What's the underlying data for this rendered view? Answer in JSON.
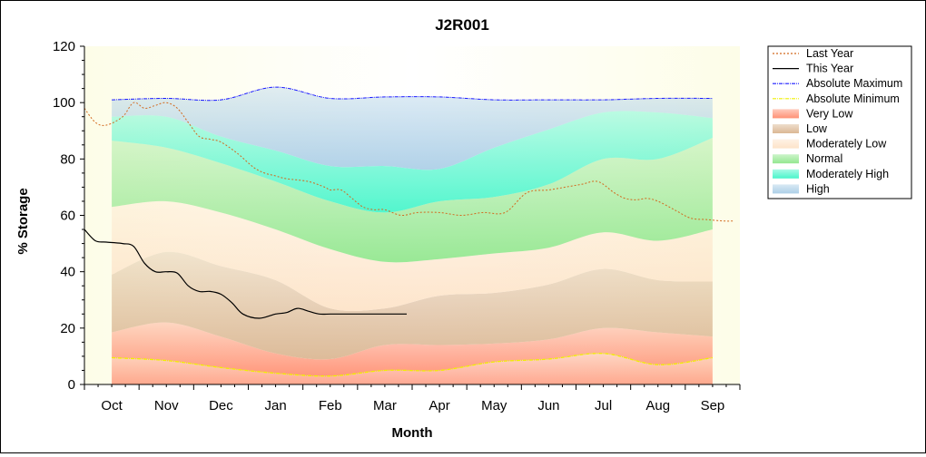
{
  "chart_data": {
    "type": "area",
    "title": "J2R001",
    "xlabel": "Month",
    "ylabel": "% Storage",
    "ylim": [
      0,
      120
    ],
    "yticks": [
      0,
      20,
      40,
      60,
      80,
      100,
      120
    ],
    "xlim": [
      -0.5,
      11.5
    ],
    "categories": [
      "Oct",
      "Nov",
      "Dec",
      "Jan",
      "Feb",
      "Mar",
      "Apr",
      "May",
      "Jun",
      "Jul",
      "Aug",
      "Sep"
    ],
    "grid": false,
    "legend_position": "right",
    "band_x": [
      0,
      1,
      2,
      3,
      4,
      5,
      6,
      7,
      8,
      9,
      10,
      11
    ],
    "bands": [
      {
        "name": "Very Low",
        "color": "#ff8c6e",
        "lower": [
          9.5,
          8.5,
          6.0,
          4.0,
          3.0,
          5.0,
          5.0,
          8.0,
          9.0,
          11.0,
          7.0,
          9.5
        ],
        "upper": [
          18.5,
          22.0,
          17.0,
          11.0,
          9.0,
          14.0,
          14.0,
          14.5,
          16.0,
          20.0,
          18.5,
          17.0
        ]
      },
      {
        "name": "Low",
        "color": "#d9b48f",
        "lower": [
          18.5,
          22.0,
          17.0,
          11.0,
          9.0,
          14.0,
          14.0,
          14.5,
          16.0,
          20.0,
          18.5,
          17.0
        ],
        "upper": [
          39.0,
          47.0,
          42.0,
          37.0,
          27.0,
          27.0,
          31.5,
          32.5,
          35.5,
          41.0,
          37.0,
          36.5
        ]
      },
      {
        "name": "Moderately Low",
        "color": "#fde2c6",
        "lower": [
          39.0,
          47.0,
          42.0,
          37.0,
          27.0,
          27.0,
          31.5,
          32.5,
          35.5,
          41.0,
          37.0,
          36.5
        ],
        "upper": [
          63.0,
          65.0,
          61.0,
          55.0,
          48.0,
          43.5,
          44.5,
          46.5,
          48.5,
          54.0,
          51.0,
          55.0
        ]
      },
      {
        "name": "Normal",
        "color": "#8ee68a",
        "lower": [
          63.0,
          65.0,
          61.0,
          55.0,
          48.0,
          43.5,
          44.5,
          46.5,
          48.5,
          54.0,
          51.0,
          55.0
        ],
        "upper": [
          86.5,
          84.0,
          78.5,
          72.0,
          65.0,
          61.0,
          65.0,
          66.5,
          71.0,
          80.0,
          80.0,
          87.5
        ]
      },
      {
        "name": "Moderately High",
        "color": "#40f5c8",
        "lower": [
          86.5,
          84.0,
          78.5,
          72.0,
          65.0,
          61.0,
          65.0,
          66.5,
          71.0,
          80.0,
          80.0,
          87.5
        ],
        "upper": [
          95.0,
          95.0,
          88.0,
          83.0,
          77.5,
          77.5,
          76.5,
          84.0,
          90.5,
          96.5,
          96.5,
          94.5
        ]
      },
      {
        "name": "High",
        "color": "#a9cde6",
        "lower": [
          95.0,
          95.0,
          88.0,
          83.0,
          77.5,
          77.5,
          76.5,
          84.0,
          90.5,
          96.5,
          96.5,
          94.5
        ],
        "upper": [
          101.0,
          101.5,
          101.0,
          105.5,
          101.5,
          102.0,
          102.0,
          101.0,
          101.0,
          101.0,
          101.5,
          101.5
        ]
      }
    ],
    "lines": [
      {
        "name": "Last Year",
        "color": "#d2691e",
        "dash": "2,2",
        "width": 1,
        "x": [
          -0.5,
          -0.3,
          -0.1,
          0.2,
          0.4,
          0.6,
          0.8,
          1.0,
          1.2,
          1.4,
          1.6,
          1.8,
          2.0,
          2.3,
          2.6,
          2.8,
          3.0,
          3.2,
          3.6,
          3.9,
          4.0,
          4.2,
          4.4,
          4.6,
          4.8,
          5.0,
          5.3,
          5.6,
          6.0,
          6.4,
          6.8,
          7.2,
          7.6,
          8.0,
          8.3,
          8.6,
          8.9,
          9.2,
          9.4,
          9.6,
          9.8,
          10.0,
          10.3,
          10.6,
          10.9,
          11.2,
          11.4
        ],
        "y": [
          98,
          93,
          92,
          95,
          100,
          98,
          99,
          100,
          98,
          93,
          88,
          87,
          86,
          82,
          77,
          75,
          74,
          73,
          72,
          70,
          69,
          69,
          66,
          63,
          62,
          62,
          60,
          61,
          61,
          60,
          61,
          61,
          68,
          69,
          70,
          71,
          72,
          68,
          66,
          65.5,
          66,
          65,
          62,
          59,
          58.5,
          58,
          58
        ]
      },
      {
        "name": "This Year",
        "color": "#000000",
        "dash": "",
        "width": 1.2,
        "x": [
          -0.5,
          -0.3,
          -0.1,
          0.2,
          0.4,
          0.6,
          0.8,
          1.0,
          1.2,
          1.4,
          1.6,
          1.8,
          2.0,
          2.2,
          2.4,
          2.7,
          3.0,
          3.2,
          3.4,
          3.6,
          3.8,
          4.0,
          4.2,
          4.4,
          4.6,
          4.8,
          5.0,
          5.2,
          5.4
        ],
        "y": [
          55,
          51,
          50.5,
          50,
          49,
          43,
          40,
          40,
          39.5,
          35,
          33,
          33,
          32,
          29,
          25,
          23.5,
          25,
          25.5,
          27,
          26,
          25,
          25,
          25,
          25,
          25,
          25,
          25,
          25,
          25
        ]
      },
      {
        "name": "Absolute Maximum",
        "color": "#1a1aff",
        "dash": "4,1,1,1",
        "width": 1,
        "x": [
          0,
          1,
          2,
          3,
          4,
          5,
          6,
          7,
          8,
          9,
          10,
          11
        ],
        "y": [
          101.0,
          101.5,
          101.0,
          105.5,
          101.5,
          102.0,
          102.0,
          101.0,
          101.0,
          101.0,
          101.5,
          101.5
        ]
      },
      {
        "name": "Absolute Minimum",
        "color": "#f0f000",
        "dash": "4,1,1,1",
        "width": 1.3,
        "x": [
          0,
          1,
          2,
          3,
          4,
          5,
          6,
          7,
          8,
          9,
          10,
          11
        ],
        "y": [
          9.5,
          8.5,
          6.0,
          4.0,
          3.0,
          5.0,
          5.0,
          8.0,
          9.0,
          11.0,
          7.0,
          9.5
        ]
      }
    ],
    "legend": [
      {
        "label": "Last Year",
        "kind": "line",
        "color": "#d2691e",
        "dash": "2,2"
      },
      {
        "label": "This Year",
        "kind": "line",
        "color": "#000000",
        "dash": ""
      },
      {
        "label": "Absolute Maximum",
        "kind": "line",
        "color": "#1a1aff",
        "dash": "4,1,1,1"
      },
      {
        "label": "Absolute Minimum",
        "kind": "line",
        "color": "#f0f000",
        "dash": "4,1,1,1"
      },
      {
        "label": "Very Low",
        "kind": "fill",
        "color": "#ff8c6e"
      },
      {
        "label": "Low",
        "kind": "fill",
        "color": "#d9b48f"
      },
      {
        "label": "Moderately Low",
        "kind": "fill",
        "color": "#fde2c6"
      },
      {
        "label": "Normal",
        "kind": "fill",
        "color": "#8ee68a"
      },
      {
        "label": "Moderately High",
        "kind": "fill",
        "color": "#40f5c8"
      },
      {
        "label": "High",
        "kind": "fill",
        "color": "#a9cde6"
      }
    ]
  },
  "colors": {
    "plot_background": "#fdfde8",
    "axis": "#000000"
  }
}
